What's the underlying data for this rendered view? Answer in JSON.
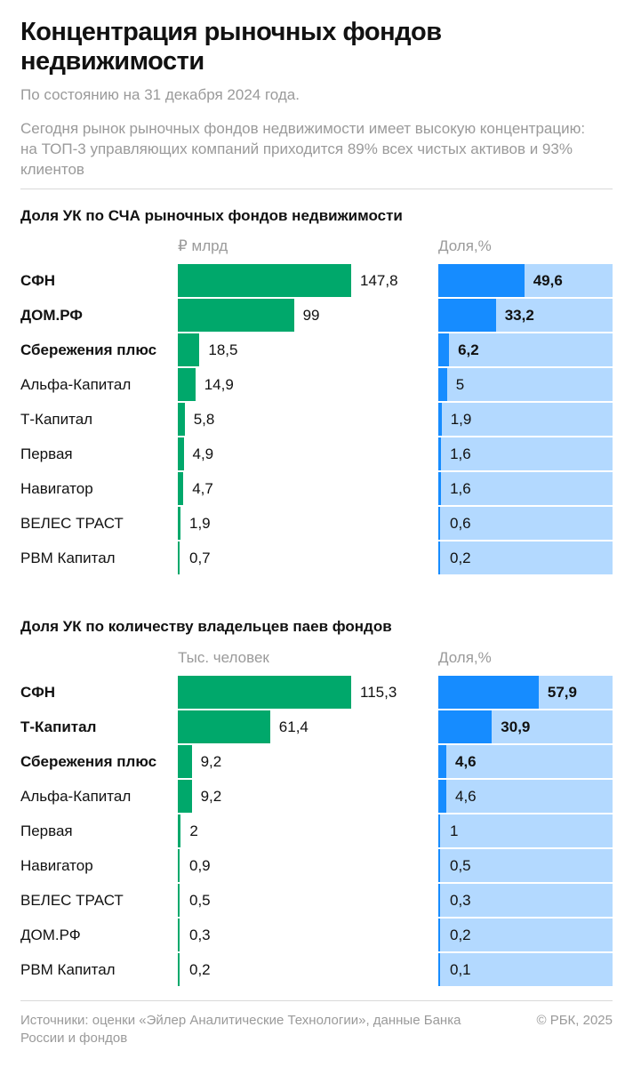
{
  "header": {
    "title": "Концентрация рыночных фондов недвижимости",
    "subtitle": "По состоянию на 31 декабря 2024 года.",
    "description": "Сегодня рынок рыночных фондов недвижимости имеет высокую концентрацию: на ТОП-3 управляющих компаний приходится 89% всех чистых активов и 93% клиентов"
  },
  "footer": {
    "source": "Источники: оценки «Эйлер Аналитические Технологии», данные Банка России и фондов",
    "copyright": "© РБК, 2025"
  },
  "colors": {
    "abs_bar": "#00a86b",
    "pct_bar": "#168cff",
    "pct_bg": "#b3d9ff"
  },
  "chart_data": [
    {
      "type": "bar",
      "title": "Доля УК по СЧА рыночных фондов недвижимости",
      "abs_header": "₽ млрд",
      "pct_header": "Доля,%",
      "categories": [
        "СФН",
        "ДОМ.РФ",
        "Сбережения плюс",
        "Альфа-Капитал",
        "Т-Капитал",
        "Первая",
        "Навигатор",
        "ВЕЛЕС ТРАСТ",
        "РВМ Капитал"
      ],
      "bold": [
        true,
        true,
        true,
        false,
        false,
        false,
        false,
        false,
        false
      ],
      "series": [
        {
          "values": [
            147.8,
            99,
            18.5,
            14.9,
            5.8,
            4.9,
            4.7,
            1.9,
            0.7
          ],
          "labels": [
            "147,8",
            "99",
            "18,5",
            "14,9",
            "5,8",
            "4,9",
            "4,7",
            "1,9",
            "0,7"
          ]
        },
        {
          "values": [
            49.6,
            33.2,
            6.2,
            5,
            1.9,
            1.6,
            1.6,
            0.6,
            0.2
          ],
          "labels": [
            "49,6",
            "33,2",
            "6,2",
            "5",
            "1,9",
            "1,6",
            "1,6",
            "0,6",
            "0,2"
          ]
        }
      ]
    },
    {
      "type": "bar",
      "title": "Доля УК по количеству владельцев паев фондов",
      "abs_header": "Тыс. человек",
      "pct_header": "Доля,%",
      "categories": [
        "СФН",
        "Т-Капитал",
        "Сбережения плюс",
        "Альфа-Капитал",
        "Первая",
        "Навигатор",
        "ВЕЛЕС ТРАСТ",
        "ДОМ.РФ",
        "РВМ Капитал"
      ],
      "bold": [
        true,
        true,
        true,
        false,
        false,
        false,
        false,
        false,
        false
      ],
      "series": [
        {
          "values": [
            115.3,
            61.4,
            9.2,
            9.2,
            2,
            0.9,
            0.5,
            0.3,
            0.2
          ],
          "labels": [
            "115,3",
            "61,4",
            "9,2",
            "9,2",
            "2",
            "0,9",
            "0,5",
            "0,3",
            "0,2"
          ]
        },
        {
          "values": [
            57.9,
            30.9,
            4.6,
            4.6,
            1,
            0.5,
            0.3,
            0.2,
            0.1
          ],
          "labels": [
            "57,9",
            "30,9",
            "4,6",
            "4,6",
            "1",
            "0,5",
            "0,3",
            "0,2",
            "0,1"
          ]
        }
      ]
    }
  ]
}
